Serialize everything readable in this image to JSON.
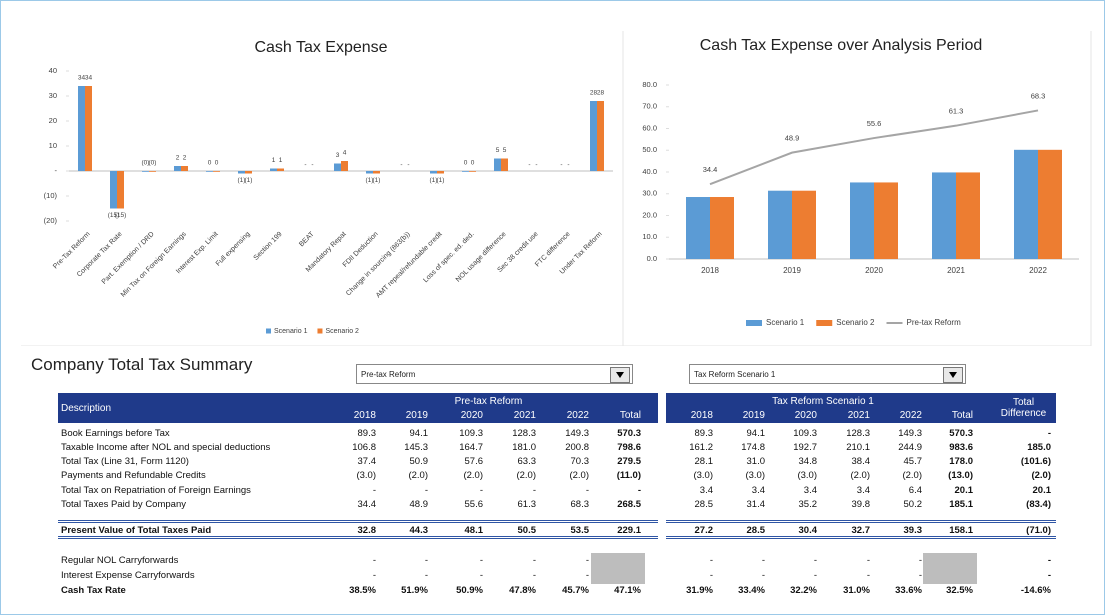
{
  "chart_data": [
    {
      "type": "bar",
      "title": "Cash Tax Expense",
      "categories": [
        "Pre-Tax Reform",
        "Corporate Tax Rate",
        "Part. Exemption / DRD",
        "Min Tax on Foreign Earnings",
        "Interest Exp. Limit",
        "Full expensing",
        "Section 199",
        "BEAT",
        "Mandatory Repat",
        "FDII Deduction",
        "Change in sourcing (863(b))",
        "AMT repeal/refundable credit",
        "Loss of spec. ed. ded.",
        "NOL usage difference",
        "Sec 38 credit use",
        "FTC difference",
        "Under Tax Reform"
      ],
      "series": [
        {
          "name": "Scenario 1",
          "color": "#5b9bd5",
          "values": [
            34,
            -15,
            0,
            2,
            0,
            -1,
            1,
            null,
            3,
            -1,
            null,
            -1,
            0,
            5,
            null,
            null,
            28
          ],
          "value_labels": [
            "34",
            "(15)",
            "(0)",
            "2",
            "0",
            "(1)",
            "1",
            "-",
            "3",
            "(1)",
            "-",
            "(1)",
            "0",
            "5",
            "-",
            "-",
            "28"
          ]
        },
        {
          "name": "Scenario 2",
          "color": "#ed7d31",
          "values": [
            34,
            -15,
            0,
            2,
            0,
            -1,
            1,
            null,
            4,
            -1,
            null,
            -1,
            0,
            5,
            null,
            null,
            28
          ],
          "value_labels": [
            "34",
            "(15)",
            "(0)",
            "2",
            "0",
            "(1)",
            "1",
            "-",
            "4",
            "(1)",
            "-",
            "(1)",
            "0",
            "5",
            "-",
            "-",
            "28"
          ]
        }
      ],
      "ylim": [
        -20,
        40
      ],
      "yticks": [
        {
          "value": -20,
          "label": "(20)"
        },
        {
          "value": -10,
          "label": "(10)"
        },
        {
          "value": 0,
          "label": "-"
        },
        10,
        20,
        30,
        40
      ],
      "grid": false,
      "legend": "bottom"
    },
    {
      "type": "combo",
      "title": "Cash Tax Expense over Analysis Period",
      "categories": [
        "2018",
        "2019",
        "2020",
        "2021",
        "2022"
      ],
      "series": [
        {
          "name": "Scenario 1",
          "type": "bar",
          "color": "#5b9bd5",
          "values": [
            28.5,
            31.4,
            35.2,
            39.8,
            50.2
          ]
        },
        {
          "name": "Scenario 2",
          "type": "bar",
          "color": "#ed7d31",
          "values": [
            28.5,
            31.4,
            35.2,
            39.8,
            50.2
          ]
        },
        {
          "name": "Pre-tax Reform",
          "type": "line",
          "color": "#a5a5a5",
          "values": [
            34.4,
            48.9,
            55.6,
            61.3,
            68.3
          ]
        }
      ],
      "ylim": [
        0,
        80
      ],
      "yticks": [
        {
          "value": 0,
          "label": "0.0"
        },
        {
          "value": 10,
          "label": "10.0"
        },
        {
          "value": 20,
          "label": "20.0"
        },
        {
          "value": 30,
          "label": "30.0"
        },
        {
          "value": 40,
          "label": "40.0"
        },
        {
          "value": 50,
          "label": "50.0"
        },
        {
          "value": 60,
          "label": "60.0"
        },
        {
          "value": 70,
          "label": "70.0"
        },
        {
          "value": 80,
          "label": "80.0"
        }
      ],
      "grid": false,
      "legend": "bottom"
    }
  ],
  "table": {
    "title": "Company Total Tax Summary",
    "dropdowns": [
      "Pre-tax Reform",
      "Tax Reform Scenario 1"
    ],
    "description_header": "Description",
    "groups": [
      {
        "name": "Pre-tax Reform",
        "columns": [
          "2018",
          "2019",
          "2020",
          "2021",
          "2022",
          "Total"
        ]
      },
      {
        "name": "Tax Reform Scenario 1",
        "columns": [
          "2018",
          "2019",
          "2020",
          "2021",
          "2022",
          "Total"
        ]
      }
    ],
    "difference_header": "Total Difference",
    "rows": [
      {
        "label": "Book Earnings before Tax",
        "values": [
          "89.3",
          "94.1",
          "109.3",
          "128.3",
          "149.3",
          "570.3",
          "89.3",
          "94.1",
          "109.3",
          "128.3",
          "149.3",
          "570.3",
          "-"
        ]
      },
      {
        "label": "Taxable Income after NOL and special deductions",
        "values": [
          "106.8",
          "145.3",
          "164.7",
          "181.0",
          "200.8",
          "798.6",
          "161.2",
          "174.8",
          "192.7",
          "210.1",
          "244.9",
          "983.6",
          "185.0"
        ]
      },
      {
        "label": "Total Tax (Line 31, Form 1120)",
        "values": [
          "37.4",
          "50.9",
          "57.6",
          "63.3",
          "70.3",
          "279.5",
          "28.1",
          "31.0",
          "34.8",
          "38.4",
          "45.7",
          "178.0",
          "(101.6)"
        ]
      },
      {
        "label": "Payments and Refundable Credits",
        "values": [
          "(3.0)",
          "(2.0)",
          "(2.0)",
          "(2.0)",
          "(2.0)",
          "(11.0)",
          "(3.0)",
          "(3.0)",
          "(3.0)",
          "(2.0)",
          "(2.0)",
          "(13.0)",
          "(2.0)"
        ]
      },
      {
        "label": "Total Tax on Repatriation of Foreign Earnings",
        "values": [
          "-",
          "-",
          "-",
          "-",
          "-",
          "-",
          "3.4",
          "3.4",
          "3.4",
          "3.4",
          "6.4",
          "20.1",
          "20.1"
        ]
      },
      {
        "label": "Total Taxes Paid by Company",
        "values": [
          "34.4",
          "48.9",
          "55.6",
          "61.3",
          "68.3",
          "268.5",
          "28.5",
          "31.4",
          "35.2",
          "39.8",
          "50.2",
          "185.1",
          "(83.4)"
        ]
      },
      {
        "label": "Present Value of Total Taxes Paid",
        "bold": true,
        "values": [
          "32.8",
          "44.3",
          "48.1",
          "50.5",
          "53.5",
          "229.1",
          "27.2",
          "28.5",
          "30.4",
          "32.7",
          "39.3",
          "158.1",
          "(71.0)"
        ]
      },
      {
        "label": "Regular NOL Carryforwards",
        "values": [
          "-",
          "-",
          "-",
          "-",
          "-",
          null,
          "-",
          "-",
          "-",
          "-",
          "-",
          null,
          "-"
        ]
      },
      {
        "label": "Interest Expense Carryforwards",
        "values": [
          "-",
          "-",
          "-",
          "-",
          "-",
          null,
          "-",
          "-",
          "-",
          "-",
          "-",
          null,
          "-"
        ]
      },
      {
        "label": "Cash Tax Rate",
        "bold": true,
        "values": [
          "38.5%",
          "51.9%",
          "50.9%",
          "47.8%",
          "45.7%",
          "47.1%",
          "31.9%",
          "33.4%",
          "32.2%",
          "31.0%",
          "33.6%",
          "32.5%",
          "-14.6%"
        ]
      }
    ]
  }
}
